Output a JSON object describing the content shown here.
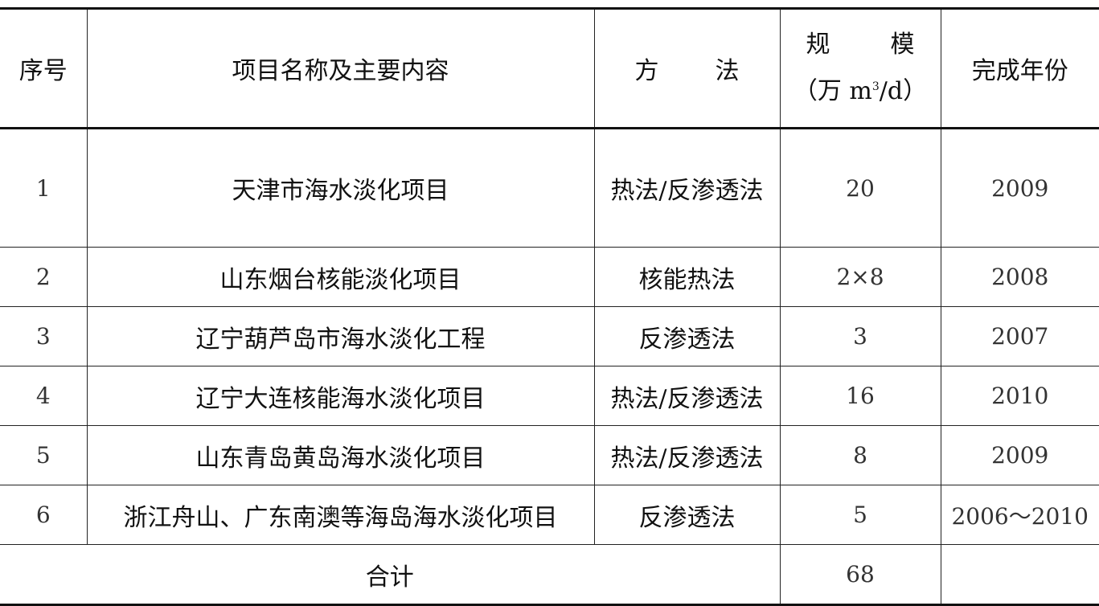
{
  "headers": {
    "index": "序号",
    "name": "项目名称及主要内容",
    "method_a": "方",
    "method_b": "法",
    "scale_a": "规",
    "scale_b": "模",
    "scale_unit_pre": "（万 m",
    "scale_unit_sup": "3",
    "scale_unit_post": "/d）",
    "year": "完成年份"
  },
  "rows": [
    {
      "index": "1",
      "name": "天津市海水淡化项目",
      "method": "热法/反渗透法",
      "scale": "20",
      "year": "2009"
    },
    {
      "index": "2",
      "name": "山东烟台核能淡化项目",
      "method": "核能热法",
      "scale": "2×8",
      "year": "2008"
    },
    {
      "index": "3",
      "name": "辽宁葫芦岛市海水淡化工程",
      "method": "反渗透法",
      "scale": "3",
      "year": "2007"
    },
    {
      "index": "4",
      "name": "辽宁大连核能海水淡化项目",
      "method": "热法/反渗透法",
      "scale": "16",
      "year": "2010"
    },
    {
      "index": "5",
      "name": "山东青岛黄岛海水淡化项目",
      "method": "热法/反渗透法",
      "scale": "8",
      "year": "2009"
    },
    {
      "index": "6",
      "name": "浙江舟山、广东南澳等海岛海水淡化项目",
      "method": "反渗透法",
      "scale": "5",
      "year": "2006～2010"
    }
  ],
  "total": {
    "label": "合计",
    "scale": "68",
    "year": ""
  }
}
